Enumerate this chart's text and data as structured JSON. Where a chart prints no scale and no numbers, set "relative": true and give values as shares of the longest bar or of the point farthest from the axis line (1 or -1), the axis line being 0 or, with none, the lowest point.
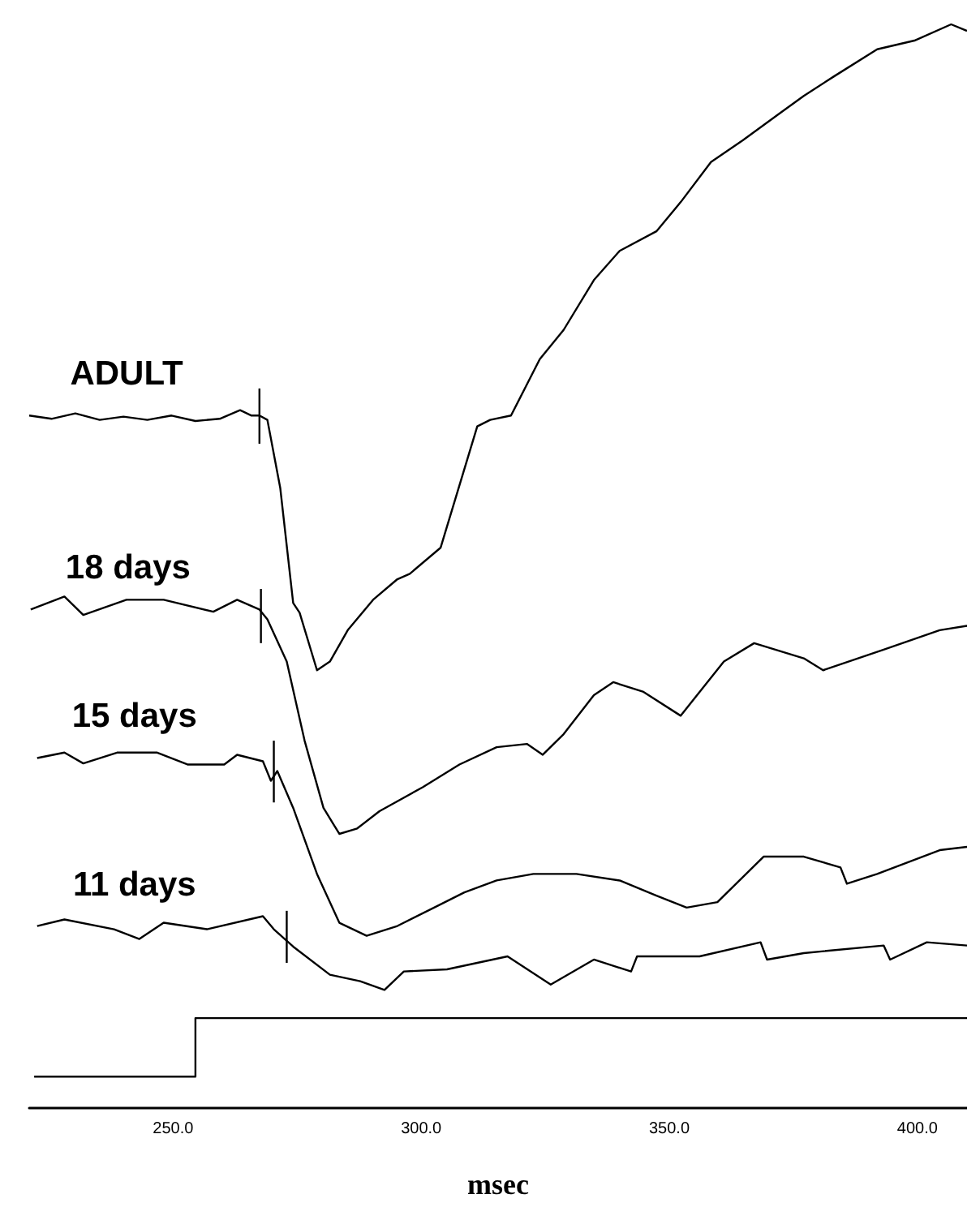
{
  "chart_data": {
    "type": "line",
    "relative": true,
    "xlabel": "msec",
    "xlim": [
      221,
      410
    ],
    "xticks": [
      {
        "value": 250,
        "label": "250.0"
      },
      {
        "value": 300,
        "label": "300.0"
      },
      {
        "value": 350,
        "label": "350.0"
      },
      {
        "value": 400,
        "label": "400.0"
      }
    ],
    "marker": "none",
    "line_style": "solid",
    "series": [
      {
        "name": "ADULT",
        "color": "#000000",
        "x": [
          221.0,
          225.5,
          230.3,
          235.2,
          240.0,
          244.8,
          249.7,
          254.5,
          259.4,
          263.5,
          265.8,
          267.4,
          269.0,
          271.6,
          274.2,
          275.5,
          279.0,
          281.6,
          285.2,
          290.3,
          295.2,
          297.7,
          303.9,
          311.3,
          313.9,
          318.1,
          323.9,
          328.7,
          334.8,
          340.0,
          347.4,
          352.3,
          358.4,
          364.8,
          372.3,
          377.1,
          383.2,
          391.9,
          399.4,
          406.8,
          410
        ],
        "values": [
          0.639,
          0.636,
          0.641,
          0.635,
          0.638,
          0.635,
          0.639,
          0.634,
          0.636,
          0.644,
          0.639,
          0.639,
          0.635,
          0.572,
          0.466,
          0.457,
          0.404,
          0.412,
          0.441,
          0.469,
          0.488,
          0.493,
          0.517,
          0.629,
          0.635,
          0.639,
          0.691,
          0.718,
          0.764,
          0.791,
          0.809,
          0.836,
          0.873,
          0.893,
          0.918,
          0.934,
          0.952,
          0.977,
          0.985,
          1.0,
          0.994
        ]
      },
      {
        "name": "18 days",
        "color": "#000000",
        "x": [
          221.3,
          228.1,
          231.9,
          240.6,
          248.1,
          258.1,
          262.9,
          267.4,
          269.0,
          272.9,
          276.5,
          280.3,
          283.5,
          287.1,
          291.6,
          300.3,
          307.7,
          315.2,
          321.3,
          324.5,
          328.7,
          334.8,
          338.7,
          344.8,
          352.3,
          361.0,
          367.1,
          377.1,
          381.0,
          393.2,
          404.5,
          410
        ],
        "values": [
          0.46,
          0.472,
          0.455,
          0.469,
          0.469,
          0.458,
          0.469,
          0.46,
          0.451,
          0.412,
          0.339,
          0.277,
          0.253,
          0.258,
          0.274,
          0.296,
          0.317,
          0.333,
          0.336,
          0.326,
          0.345,
          0.381,
          0.393,
          0.384,
          0.362,
          0.412,
          0.429,
          0.415,
          0.404,
          0.423,
          0.441,
          0.445
        ]
      },
      {
        "name": "15 days",
        "color": "#000000",
        "x": [
          222.6,
          228.1,
          231.9,
          238.7,
          246.8,
          252.9,
          260.3,
          262.9,
          268.1,
          269.7,
          271.0,
          274.2,
          279.0,
          283.5,
          289.0,
          295.2,
          302.6,
          308.7,
          315.2,
          322.6,
          331.3,
          340.0,
          347.4,
          353.5,
          359.7,
          369.0,
          377.1,
          384.5,
          385.8,
          391.9,
          404.5,
          410
        ],
        "values": [
          0.323,
          0.328,
          0.318,
          0.328,
          0.328,
          0.317,
          0.317,
          0.326,
          0.32,
          0.302,
          0.311,
          0.277,
          0.216,
          0.171,
          0.159,
          0.168,
          0.185,
          0.199,
          0.21,
          0.216,
          0.216,
          0.21,
          0.196,
          0.185,
          0.19,
          0.232,
          0.232,
          0.222,
          0.207,
          0.216,
          0.238,
          0.241
        ]
      },
      {
        "name": "11 days",
        "color": "#000000",
        "x": [
          222.6,
          228.1,
          238.1,
          243.2,
          248.1,
          256.8,
          268.1,
          270.3,
          274.2,
          281.6,
          287.7,
          292.6,
          296.5,
          305.2,
          317.4,
          326.1,
          334.8,
          342.3,
          343.5,
          356.1,
          368.4,
          369.7,
          377.1,
          393.2,
          394.5,
          401.9,
          410
        ],
        "values": [
          0.168,
          0.174,
          0.165,
          0.156,
          0.171,
          0.165,
          0.177,
          0.165,
          0.149,
          0.123,
          0.117,
          0.109,
          0.126,
          0.128,
          0.14,
          0.114,
          0.137,
          0.126,
          0.14,
          0.14,
          0.153,
          0.137,
          0.143,
          0.15,
          0.137,
          0.153,
          0.15
        ]
      },
      {
        "color": "#000000",
        "x": [
          222,
          254.5,
          254.5,
          410
        ],
        "values": [
          0.029,
          0.029,
          0.083,
          0.083
        ]
      },
      {
        "color": "#000000",
        "x": [
          267.4,
          267.4
        ],
        "values": [
          0.664,
          0.613
        ]
      },
      {
        "color": "#000000",
        "x": [
          267.7,
          267.7
        ],
        "values": [
          0.479,
          0.429
        ]
      },
      {
        "color": "#000000",
        "x": [
          270.3,
          270.3
        ],
        "values": [
          0.339,
          0.282
        ]
      },
      {
        "color": "#000000",
        "x": [
          272.9,
          272.9
        ],
        "values": [
          0.182,
          0.134
        ]
      }
    ]
  }
}
